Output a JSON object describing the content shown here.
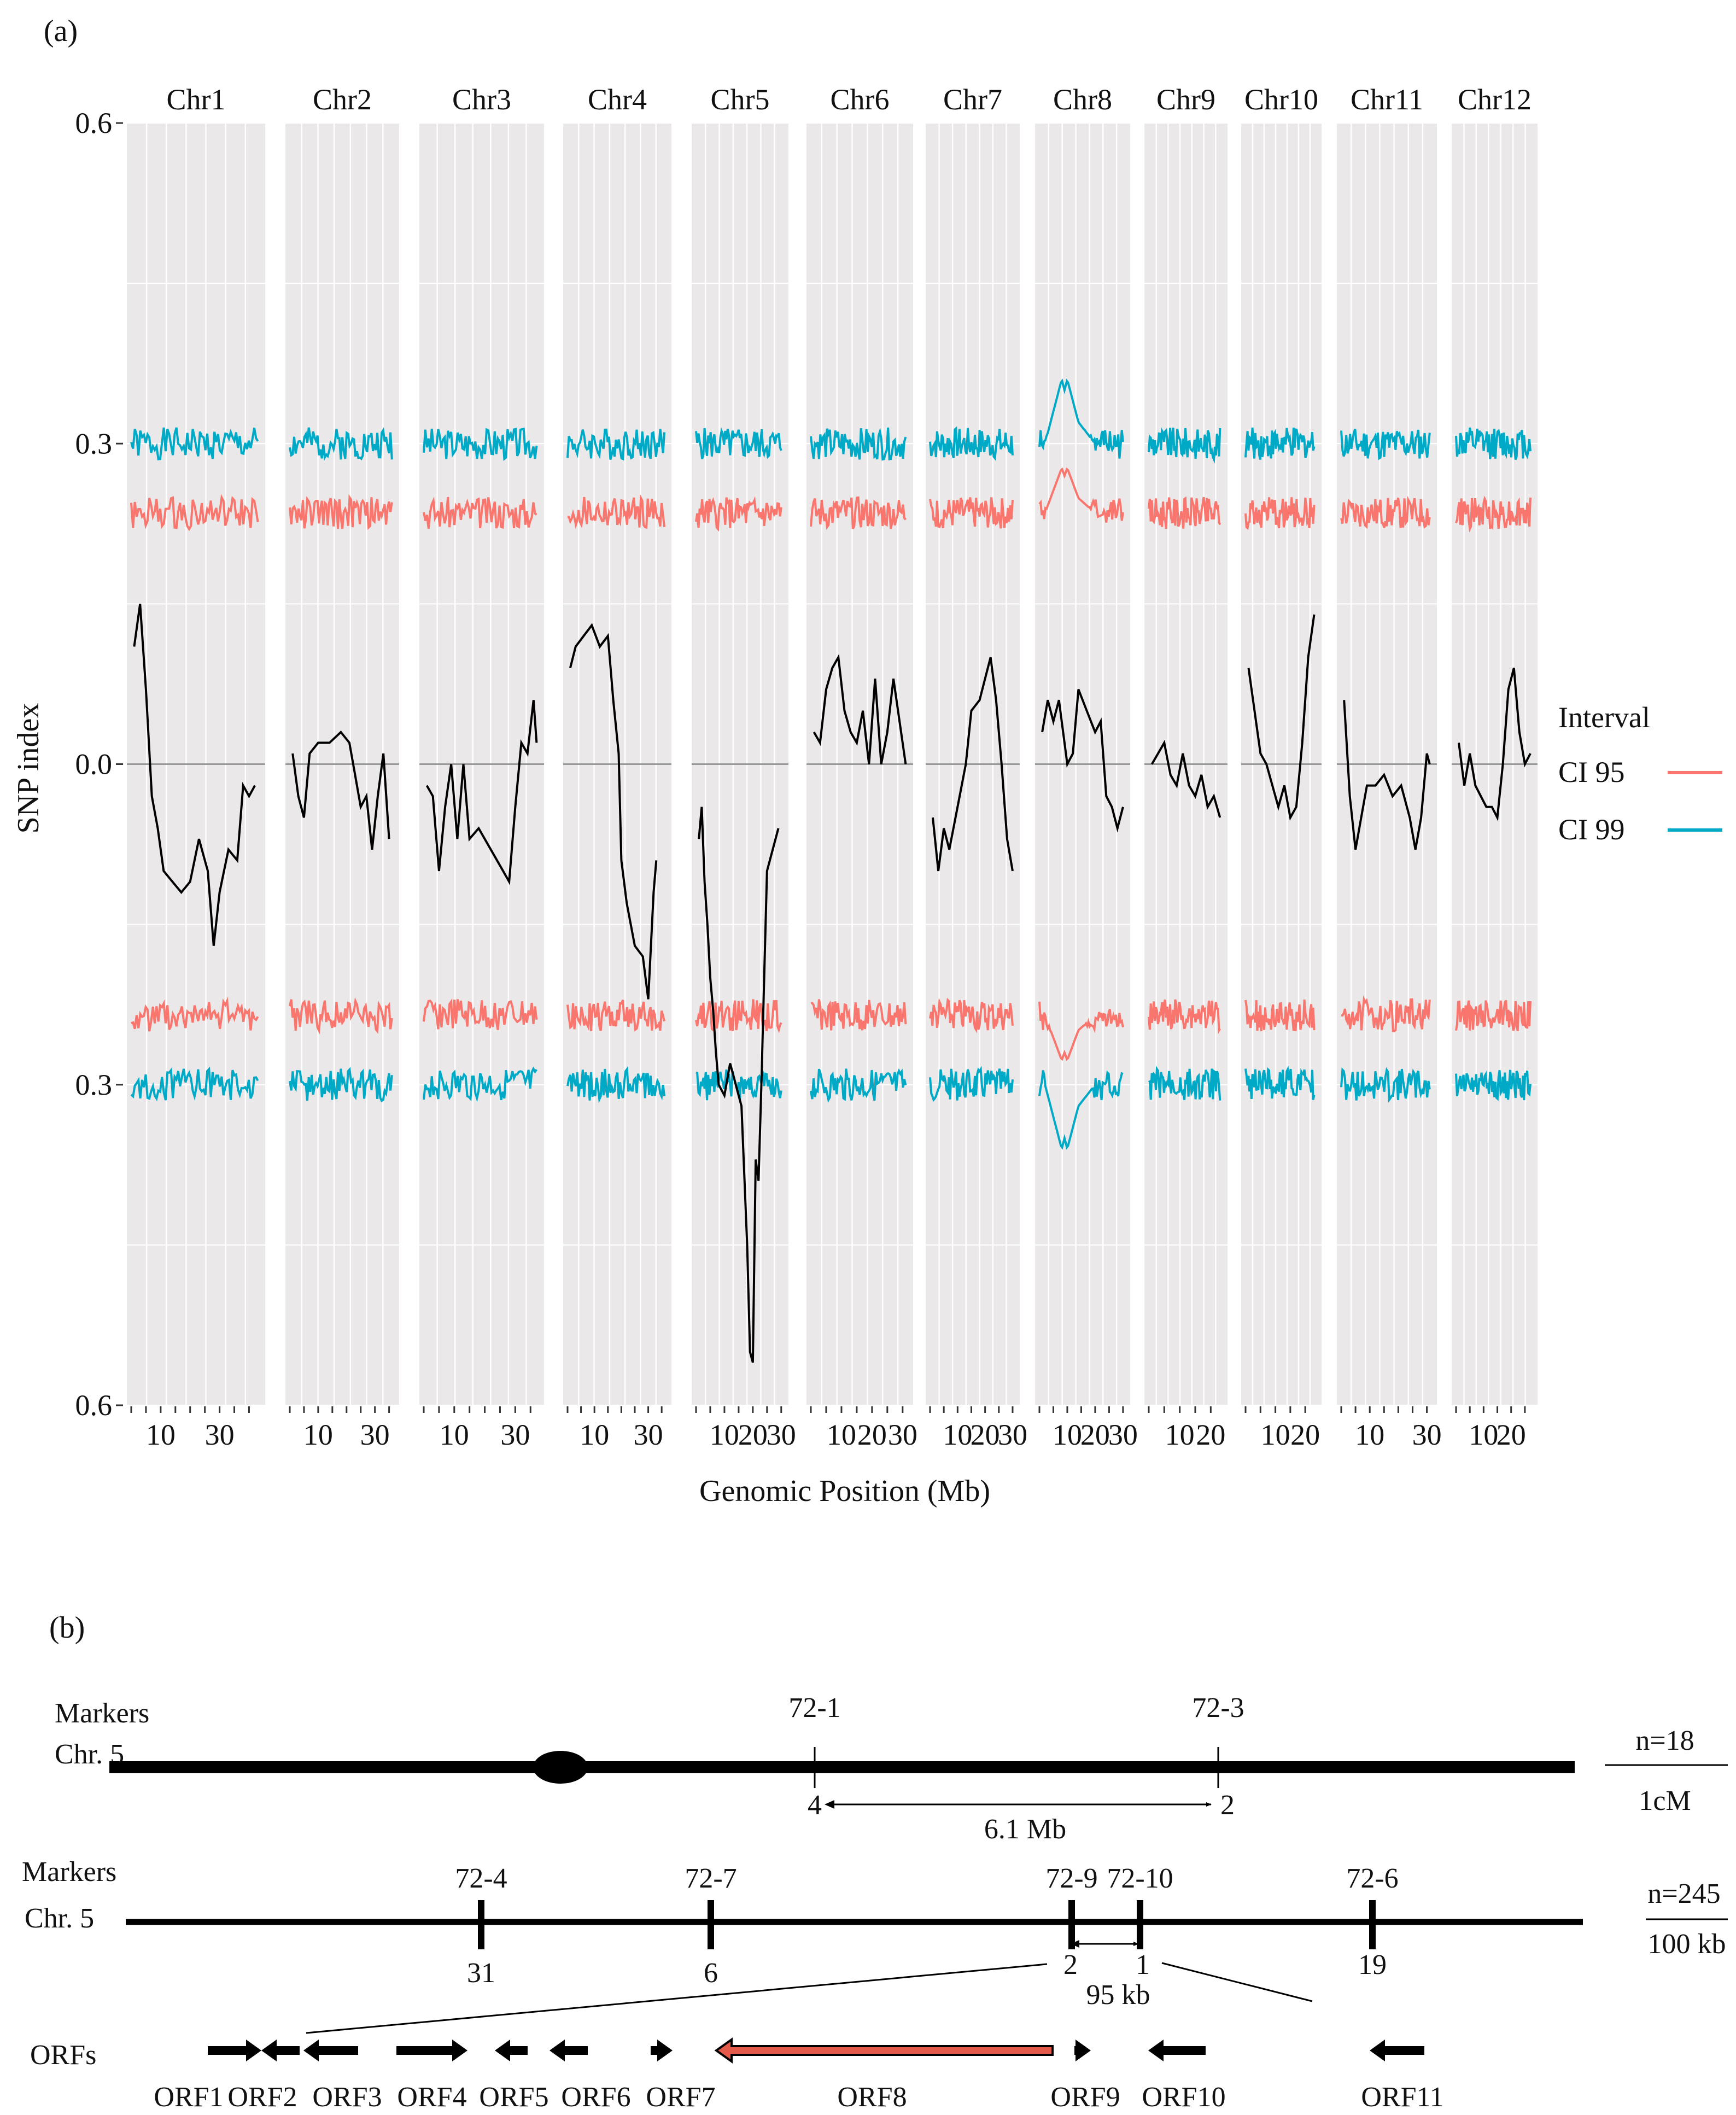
{
  "panel_a_label": "(a)",
  "panel_b_label": "(b)",
  "colors": {
    "panel_bg": "#ebe8e9",
    "grid": "#ffffff",
    "ci95": "#f8766d",
    "ci99": "#00a9c6",
    "line": "#000000",
    "zero": "#999999"
  },
  "chart_data": {
    "type": "line",
    "title": "",
    "xlabel": "Genomic Position (Mb)",
    "ylabel": "SNP index",
    "ylim": [
      -0.6,
      0.6
    ],
    "y_ticks": [
      0.6,
      0.3,
      0.0,
      0.3,
      0.6
    ],
    "y_tick_labels": [
      "0.6",
      "0.3",
      "0.0",
      "0.3",
      "0.6"
    ],
    "legend": {
      "title": "Interval",
      "entries": [
        {
          "label": "CI 95",
          "color": "#f8766d"
        },
        {
          "label": "CI 99",
          "color": "#00a9c6"
        }
      ],
      "position": "right"
    },
    "facets": [
      {
        "name": "Chr1",
        "length": 43,
        "ticks": [
          "10",
          "30"
        ],
        "tick_values": [
          10,
          30
        ],
        "ci99": 0.3,
        "ci95": 0.235,
        "points": [
          [
            1,
            0.11
          ],
          [
            3,
            0.15
          ],
          [
            5,
            0.07
          ],
          [
            7,
            -0.03
          ],
          [
            9,
            -0.06
          ],
          [
            11,
            -0.1
          ],
          [
            14,
            -0.11
          ],
          [
            17,
            -0.12
          ],
          [
            20,
            -0.11
          ],
          [
            23,
            -0.07
          ],
          [
            26,
            -0.1
          ],
          [
            28,
            -0.17
          ],
          [
            30,
            -0.12
          ],
          [
            33,
            -0.08
          ],
          [
            36,
            -0.09
          ],
          [
            38,
            -0.02
          ],
          [
            40,
            -0.03
          ],
          [
            42,
            -0.02
          ]
        ]
      },
      {
        "name": "Chr2",
        "length": 36,
        "ticks": [
          "10",
          "30"
        ],
        "tick_values": [
          10,
          30
        ],
        "ci99": 0.3,
        "ci95": 0.235,
        "points": [
          [
            1,
            0.01
          ],
          [
            3,
            -0.03
          ],
          [
            5,
            -0.05
          ],
          [
            7,
            0.01
          ],
          [
            10,
            0.02
          ],
          [
            14,
            0.02
          ],
          [
            18,
            0.03
          ],
          [
            21,
            0.02
          ],
          [
            23,
            -0.01
          ],
          [
            25,
            -0.04
          ],
          [
            27,
            -0.03
          ],
          [
            29,
            -0.08
          ],
          [
            31,
            -0.03
          ],
          [
            33,
            0.01
          ],
          [
            35,
            -0.07
          ]
        ]
      },
      {
        "name": "Chr3",
        "length": 37,
        "ticks": [
          "10",
          "30"
        ],
        "tick_values": [
          10,
          30
        ],
        "ci99": 0.3,
        "ci95": 0.235,
        "points": [
          [
            1,
            -0.02
          ],
          [
            3,
            -0.03
          ],
          [
            5,
            -0.1
          ],
          [
            7,
            -0.04
          ],
          [
            9,
            0.0
          ],
          [
            11,
            -0.07
          ],
          [
            13,
            0.0
          ],
          [
            15,
            -0.07
          ],
          [
            18,
            -0.06
          ],
          [
            22,
            -0.08
          ],
          [
            26,
            -0.1
          ],
          [
            28,
            -0.11
          ],
          [
            30,
            -0.04
          ],
          [
            32,
            0.02
          ],
          [
            34,
            0.01
          ],
          [
            36,
            0.06
          ],
          [
            37,
            0.02
          ]
        ]
      },
      {
        "name": "Chr4",
        "length": 36,
        "ticks": [
          "10",
          "30"
        ],
        "tick_values": [
          10,
          30
        ],
        "ci99": 0.3,
        "ci95": 0.235,
        "points": [
          [
            1,
            0.09
          ],
          [
            3,
            0.11
          ],
          [
            6,
            0.12
          ],
          [
            9,
            0.13
          ],
          [
            12,
            0.11
          ],
          [
            15,
            0.12
          ],
          [
            17,
            0.06
          ],
          [
            19,
            0.01
          ],
          [
            20,
            -0.09
          ],
          [
            22,
            -0.13
          ],
          [
            25,
            -0.17
          ],
          [
            28,
            -0.18
          ],
          [
            30,
            -0.22
          ],
          [
            32,
            -0.12
          ],
          [
            33,
            -0.09
          ]
        ]
      },
      {
        "name": "Chr5",
        "length": 30,
        "ticks": [
          "10",
          "20",
          "30"
        ],
        "tick_values": [
          10,
          20,
          30
        ],
        "ci99": 0.3,
        "ci95": 0.235,
        "points": [
          [
            1,
            -0.07
          ],
          [
            2,
            -0.04
          ],
          [
            3,
            -0.11
          ],
          [
            4,
            -0.15
          ],
          [
            5,
            -0.2
          ],
          [
            6,
            -0.23
          ],
          [
            7,
            -0.27
          ],
          [
            8,
            -0.3
          ],
          [
            10,
            -0.31
          ],
          [
            12,
            -0.28
          ],
          [
            14,
            -0.3
          ],
          [
            16,
            -0.32
          ],
          [
            18,
            -0.45
          ],
          [
            19,
            -0.55
          ],
          [
            20,
            -0.56
          ],
          [
            21,
            -0.37
          ],
          [
            22,
            -0.39
          ],
          [
            23,
            -0.3
          ],
          [
            24,
            -0.2
          ],
          [
            25,
            -0.1
          ],
          [
            27,
            -0.08
          ],
          [
            29,
            -0.06
          ]
        ]
      },
      {
        "name": "Chr6",
        "length": 31,
        "ticks": [
          "10",
          "20",
          "30"
        ],
        "tick_values": [
          10,
          20,
          30
        ],
        "ci99": 0.3,
        "ci95": 0.235,
        "points": [
          [
            1,
            0.03
          ],
          [
            3,
            0.02
          ],
          [
            5,
            0.07
          ],
          [
            7,
            0.09
          ],
          [
            9,
            0.1
          ],
          [
            11,
            0.05
          ],
          [
            13,
            0.03
          ],
          [
            15,
            0.02
          ],
          [
            17,
            0.05
          ],
          [
            19,
            0.0
          ],
          [
            21,
            0.08
          ],
          [
            23,
            0.0
          ],
          [
            25,
            0.03
          ],
          [
            27,
            0.08
          ],
          [
            29,
            0.04
          ],
          [
            31,
            0.0
          ]
        ]
      },
      {
        "name": "Chr7",
        "length": 30,
        "ticks": [
          "10",
          "20",
          "30"
        ],
        "tick_values": [
          10,
          20,
          30
        ],
        "ci99": 0.3,
        "ci95": 0.235,
        "points": [
          [
            1,
            -0.05
          ],
          [
            3,
            -0.1
          ],
          [
            5,
            -0.06
          ],
          [
            7,
            -0.08
          ],
          [
            10,
            -0.04
          ],
          [
            13,
            0.0
          ],
          [
            15,
            0.05
          ],
          [
            18,
            0.06
          ],
          [
            20,
            0.08
          ],
          [
            22,
            0.1
          ],
          [
            24,
            0.06
          ],
          [
            26,
            0.0
          ],
          [
            28,
            -0.07
          ],
          [
            30,
            -0.1
          ]
        ]
      },
      {
        "name": "Chr8",
        "length": 30,
        "ticks": [
          "10",
          "20",
          "30"
        ],
        "tick_values": [
          10,
          20,
          30
        ],
        "ci99": 0.3,
        "ci95": 0.235,
        "ci_bumps": [
          [
            8,
            0.36
          ],
          [
            10,
            0.36
          ],
          [
            14,
            0.32
          ],
          [
            18,
            0.29
          ]
        ],
        "points": [
          [
            1,
            0.03
          ],
          [
            3,
            0.06
          ],
          [
            5,
            0.04
          ],
          [
            7,
            0.06
          ],
          [
            9,
            0.02
          ],
          [
            10,
            0.0
          ],
          [
            12,
            0.01
          ],
          [
            14,
            0.07
          ],
          [
            17,
            0.05
          ],
          [
            20,
            0.03
          ],
          [
            22,
            0.04
          ],
          [
            24,
            -0.03
          ],
          [
            26,
            -0.04
          ],
          [
            28,
            -0.06
          ],
          [
            30,
            -0.04
          ]
        ]
      },
      {
        "name": "Chr9",
        "length": 23,
        "ticks": [
          "10",
          "20"
        ],
        "tick_values": [
          10,
          20
        ],
        "ci99": 0.3,
        "ci95": 0.235,
        "points": [
          [
            1,
            0.0
          ],
          [
            3,
            0.01
          ],
          [
            5,
            0.02
          ],
          [
            7,
            -0.01
          ],
          [
            9,
            -0.02
          ],
          [
            11,
            0.01
          ],
          [
            13,
            -0.02
          ],
          [
            15,
            -0.03
          ],
          [
            17,
            -0.01
          ],
          [
            19,
            -0.04
          ],
          [
            21,
            -0.03
          ],
          [
            23,
            -0.05
          ]
        ]
      },
      {
        "name": "Chr10",
        "length": 23,
        "ticks": [
          "10",
          "20"
        ],
        "tick_values": [
          10,
          20
        ],
        "ci99": 0.3,
        "ci95": 0.235,
        "points": [
          [
            1,
            0.09
          ],
          [
            3,
            0.05
          ],
          [
            5,
            0.01
          ],
          [
            7,
            0.0
          ],
          [
            9,
            -0.02
          ],
          [
            11,
            -0.04
          ],
          [
            13,
            -0.02
          ],
          [
            15,
            -0.05
          ],
          [
            17,
            -0.04
          ],
          [
            19,
            0.02
          ],
          [
            21,
            0.1
          ],
          [
            23,
            0.14
          ]
        ]
      },
      {
        "name": "Chr11",
        "length": 31,
        "ticks": [
          "10",
          "30"
        ],
        "tick_values": [
          10,
          30
        ],
        "ci99": 0.3,
        "ci95": 0.235,
        "points": [
          [
            1,
            0.06
          ],
          [
            3,
            -0.03
          ],
          [
            5,
            -0.08
          ],
          [
            7,
            -0.05
          ],
          [
            9,
            -0.02
          ],
          [
            12,
            -0.02
          ],
          [
            15,
            -0.01
          ],
          [
            18,
            -0.03
          ],
          [
            21,
            -0.02
          ],
          [
            24,
            -0.05
          ],
          [
            26,
            -0.08
          ],
          [
            28,
            -0.05
          ],
          [
            30,
            0.01
          ],
          [
            31,
            0.0
          ]
        ]
      },
      {
        "name": "Chr12",
        "length": 27,
        "ticks": [
          "10",
          "20"
        ],
        "tick_values": [
          10,
          20
        ],
        "ci99": 0.3,
        "ci95": 0.235,
        "points": [
          [
            1,
            0.02
          ],
          [
            3,
            -0.02
          ],
          [
            5,
            0.01
          ],
          [
            7,
            -0.02
          ],
          [
            9,
            -0.03
          ],
          [
            11,
            -0.04
          ],
          [
            13,
            -0.04
          ],
          [
            15,
            -0.05
          ],
          [
            17,
            0.0
          ],
          [
            19,
            0.07
          ],
          [
            21,
            0.09
          ],
          [
            23,
            0.03
          ],
          [
            25,
            0.0
          ],
          [
            27,
            0.01
          ]
        ]
      }
    ]
  },
  "panel_b": {
    "row1": {
      "label_line1": "Markers",
      "label_line2": "Chr. 5",
      "markers": [
        {
          "name": "72-1",
          "count": "4"
        },
        {
          "name": "72-3",
          "count": "2"
        }
      ],
      "distance": "6.1 Mb",
      "n_label": "n=18",
      "scale_label": "1cM"
    },
    "row2": {
      "label_line1": "Markers",
      "label_line2": "Chr. 5",
      "markers": [
        {
          "name": "72-4",
          "count": "31"
        },
        {
          "name": "72-7",
          "count": "6"
        },
        {
          "name": "72-9",
          "count": "2"
        },
        {
          "name": "72-10",
          "count": "1"
        },
        {
          "name": "72-6",
          "count": "19"
        }
      ],
      "distance": "95 kb",
      "n_label": "n=245",
      "scale_label": "100 kb"
    },
    "orfs": {
      "label": "ORFs",
      "items": [
        "ORF1",
        "ORF2",
        "ORF3",
        "ORF4",
        "ORF5",
        "ORF6",
        "ORF7",
        "ORF8",
        "ORF9",
        "ORF10",
        "ORF11"
      ]
    }
  }
}
